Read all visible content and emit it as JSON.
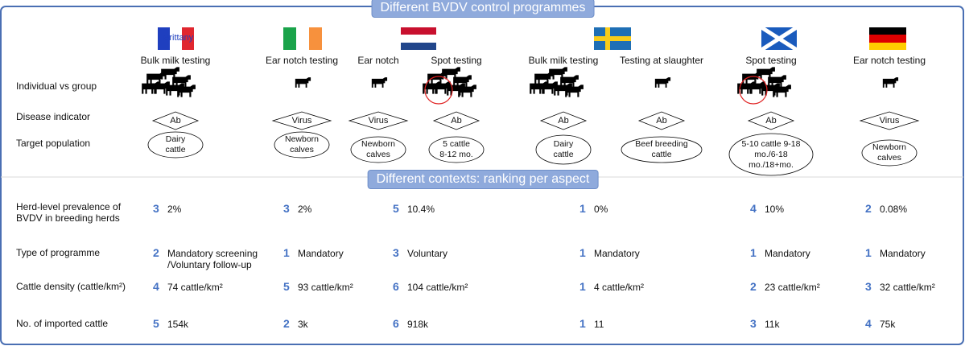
{
  "banner_top": "Different BVDV control programmes",
  "flag_label": "Brittany",
  "row_labels": [
    "Individual vs group",
    "Disease indicator",
    "Target population"
  ],
  "programmes": [
    {
      "name": "Bulk milk testing",
      "indicator": "Ab",
      "target": "Dairy\ncattle"
    },
    {
      "name": "Ear notch testing",
      "indicator": "Virus",
      "target": "Newborn\ncalves"
    },
    {
      "name": "Ear notch",
      "indicator": "Virus",
      "target": "Newborn\ncalves"
    },
    {
      "name": "Spot testing",
      "indicator": "Ab",
      "target": "5 cattle\n8-12 mo."
    },
    {
      "name": "Bulk milk testing",
      "indicator": "Ab",
      "target": "Dairy\ncattle"
    },
    {
      "name": "Testing at slaughter",
      "indicator": "Ab",
      "target": "Beef breeding\ncattle"
    },
    {
      "name": "Spot testing",
      "indicator": "Ab",
      "target": "5-10 cattle 9-18\nmo./6-18\nmo./18+mo."
    },
    {
      "name": "Ear notch testing",
      "indicator": "Virus",
      "target": "Newborn\ncalves"
    }
  ],
  "banner_bottom": "Different contexts: ranking per aspect",
  "aspects": [
    {
      "label": "Herd-level prevalence of\nBVDV in breeding herds",
      "ranks": [
        3,
        3,
        5,
        1,
        4,
        2
      ],
      "values": [
        "2%",
        "2%",
        "10.4%",
        "0%",
        "10%",
        "0.08%"
      ]
    },
    {
      "label": "Type of programme",
      "ranks": [
        2,
        1,
        3,
        1,
        1,
        1
      ],
      "values": [
        "Mandatory screening\n/Voluntary follow-up",
        "Mandatory",
        "Voluntary",
        "Mandatory",
        "Mandatory",
        "Mandatory"
      ]
    },
    {
      "label": "Cattle density (cattle/km²)",
      "ranks": [
        4,
        5,
        6,
        1,
        2,
        3
      ],
      "values": [
        "74 cattle/km²",
        "93 cattle/km²",
        "104 cattle/km²",
        "4 cattle/km²",
        "23 cattle/km²",
        "32 cattle/km²"
      ]
    },
    {
      "label": "No. of imported cattle",
      "ranks": [
        5,
        2,
        6,
        1,
        3,
        4
      ],
      "values": [
        "154k",
        "3k",
        "918k",
        "11",
        "11k",
        "75k"
      ]
    }
  ]
}
